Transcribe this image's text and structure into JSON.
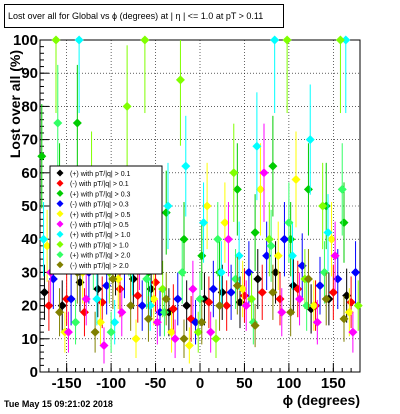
{
  "window": {
    "title": "Lost over all for Global vs ϕ (degrees) at | η | <= 1.0 at pT > 0.11",
    "timestamp": "Tue May 15 09:21:02 2018"
  },
  "chart_data": {
    "type": "scatter",
    "title": "Lost over all for Global vs ϕ (degrees) at | η | <= 1.0 at pT > 0.11",
    "xlabel": "ϕ (degrees)",
    "ylabel": "Lost over all (%)",
    "xlim": [
      -180,
      180
    ],
    "ylim": [
      0,
      100
    ],
    "x_ticks": [
      -150,
      -100,
      -50,
      0,
      50,
      100,
      150
    ],
    "y_ticks": [
      0,
      10,
      20,
      30,
      40,
      50,
      60,
      70,
      80,
      90,
      100
    ],
    "grid": true,
    "legend_position": "middle-left",
    "series": [
      {
        "name": "(+) with pT/|q| > 0.1",
        "color": "#000000",
        "x": [
          -175,
          -155,
          -135,
          -115,
          -95,
          -75,
          -55,
          -35,
          -15,
          5,
          25,
          45,
          65,
          85,
          105,
          125,
          145,
          165
        ],
        "y": [
          24,
          20,
          27,
          25,
          33,
          28,
          25,
          18,
          20,
          22,
          24,
          21,
          28,
          30,
          26,
          19,
          22,
          23
        ]
      },
      {
        "name": "(-) with pT/|q| > 0.1",
        "color": "#ff0000",
        "x": [
          -170,
          -150,
          -130,
          -110,
          -90,
          -70,
          -50,
          -30,
          -10,
          10,
          30,
          50,
          70,
          90,
          110,
          130,
          150,
          170
        ],
        "y": [
          20,
          22,
          18,
          21,
          25,
          23,
          27,
          19,
          16,
          21,
          20,
          23,
          24,
          22,
          25,
          20,
          24,
          21
        ]
      },
      {
        "name": "(+) with pT/|q| > 0.3",
        "color": "#00cc00",
        "x": [
          -178,
          -158,
          -138,
          -118,
          -98,
          -78,
          -58,
          -38,
          -18,
          2,
          22,
          42,
          62,
          82,
          102,
          122,
          142,
          162
        ],
        "y": [
          65,
          55,
          75,
          48,
          42,
          38,
          30,
          48,
          40,
          35,
          30,
          55,
          42,
          62,
          40,
          55,
          50,
          45
        ]
      },
      {
        "name": "(-) with pT/|q| > 0.3",
        "color": "#0000ff",
        "x": [
          -165,
          -145,
          -125,
          -105,
          -85,
          -65,
          -45,
          -25,
          -5,
          15,
          35,
          55,
          75,
          95,
          115,
          135,
          155,
          175
        ],
        "y": [
          28,
          22,
          30,
          26,
          32,
          20,
          18,
          22,
          15,
          25,
          24,
          30,
          35,
          40,
          32,
          26,
          28,
          30
        ]
      },
      {
        "name": "(+) with pT/|q| > 0.5",
        "color": "#ffff00",
        "x": [
          -172,
          -152,
          -132,
          -112,
          -92,
          -72,
          -52,
          -32,
          -12,
          8,
          28,
          48,
          68,
          88,
          108,
          128,
          148,
          168
        ],
        "y": [
          38,
          12,
          30,
          15,
          28,
          10,
          22,
          12,
          8,
          50,
          45,
          25,
          55,
          35,
          58,
          20,
          40,
          18
        ]
      },
      {
        "name": "(-) with pT/|q| > 0.5",
        "color": "#ff00ff",
        "x": [
          -168,
          -148,
          -128,
          -108,
          -88,
          -68,
          -48,
          -28,
          -8,
          12,
          32,
          52,
          72,
          92,
          112,
          132,
          152,
          172
        ],
        "y": [
          30,
          12,
          22,
          8,
          18,
          35,
          15,
          10,
          25,
          12,
          40,
          20,
          60,
          18,
          22,
          15,
          35,
          12
        ]
      },
      {
        "name": "(+) with pT/|q| > 1.0",
        "color": "#00ffff",
        "x": [
          -176,
          -156,
          -136,
          -116,
          -96,
          -76,
          -56,
          -36,
          -16,
          4,
          24,
          44,
          64,
          84,
          104,
          124,
          144,
          164
        ],
        "y": [
          40,
          45,
          100,
          22,
          15,
          33,
          20,
          50,
          62,
          45,
          30,
          35,
          68,
          100,
          35,
          70,
          42,
          100
        ]
      },
      {
        "name": "(-) with pT/|q| > 1.0",
        "color": "#80ff00",
        "x": [
          -162,
          -142,
          -122,
          -102,
          -82,
          -62,
          -42,
          -22,
          -2,
          18,
          38,
          58,
          78,
          98,
          118,
          138,
          158,
          178
        ],
        "y": [
          100,
          45,
          58,
          30,
          80,
          100,
          25,
          88,
          12,
          10,
          60,
          22,
          40,
          100,
          28,
          50,
          100,
          20
        ]
      },
      {
        "name": "(+) with pT/|q| > 2.0",
        "color": "#33ff66",
        "x": [
          -160,
          -140,
          -120,
          -100,
          -80,
          -60,
          -40,
          -20,
          0,
          20,
          40,
          60,
          80,
          100,
          120,
          140,
          160
        ],
        "y": [
          75,
          15,
          35,
          12,
          40,
          28,
          18,
          30,
          22,
          40,
          28,
          15,
          38,
          45,
          20,
          30,
          55
        ]
      },
      {
        "name": "(-) with pT/|q| > 2.0",
        "color": "#808000",
        "x": [
          -158,
          -138,
          -118,
          -98,
          -78,
          -58,
          -38,
          -18,
          2,
          22,
          42,
          62,
          82,
          102,
          122,
          142,
          162
        ],
        "y": [
          18,
          30,
          12,
          28,
          20,
          16,
          22,
          10,
          15,
          20,
          26,
          14,
          24,
          18,
          28,
          22,
          16
        ]
      }
    ]
  }
}
